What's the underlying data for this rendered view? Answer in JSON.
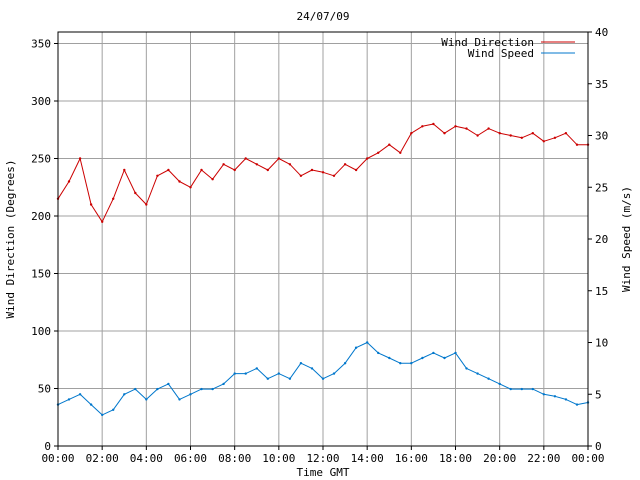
{
  "chart_data": {
    "type": "line",
    "title": "24/07/09",
    "xlabel": "Time GMT",
    "ylabel_left": "Wind Direction (Degrees)",
    "ylabel_right": "Wind Speed (m/s)",
    "xlim": [
      0,
      24
    ],
    "x_ticks": [
      "00:00",
      "02:00",
      "04:00",
      "06:00",
      "08:00",
      "10:00",
      "12:00",
      "14:00",
      "16:00",
      "18:00",
      "20:00",
      "22:00",
      "00:00"
    ],
    "y_left_lim": [
      0,
      360
    ],
    "y_left_ticks": [
      "0",
      "50",
      "100",
      "150",
      "200",
      "250",
      "300",
      "350"
    ],
    "y_right_lim": [
      0,
      40
    ],
    "y_right_ticks": [
      "0",
      "5",
      "10",
      "15",
      "20",
      "25",
      "30",
      "35",
      "40"
    ],
    "grid": true,
    "legend_position": "top-right",
    "series": [
      {
        "name": "Wind Direction",
        "color": "#cc0000",
        "axis": "left",
        "x": [
          0,
          0.5,
          1,
          1.5,
          2,
          2.5,
          3,
          3.5,
          4,
          4.5,
          5,
          5.5,
          6,
          6.5,
          7,
          7.5,
          8,
          8.5,
          9,
          9.5,
          10,
          10.5,
          11,
          11.5,
          12,
          12.5,
          13,
          13.5,
          14,
          14.5,
          15,
          15.5,
          16,
          16.5,
          17,
          17.5,
          18,
          18.5,
          19,
          19.5,
          20,
          20.5,
          21,
          21.5,
          22,
          22.5,
          23,
          23.5,
          24
        ],
        "values": [
          215,
          230,
          250,
          210,
          195,
          215,
          240,
          220,
          210,
          235,
          240,
          230,
          225,
          240,
          232,
          245,
          240,
          250,
          245,
          240,
          250,
          245,
          235,
          240,
          238,
          235,
          245,
          240,
          250,
          255,
          262,
          255,
          272,
          278,
          280,
          272,
          278,
          276,
          270,
          276,
          272,
          270,
          268,
          272,
          265,
          268,
          272,
          262,
          262
        ]
      },
      {
        "name": "Wind Speed",
        "color": "#0077cc",
        "axis": "right",
        "x": [
          0,
          0.5,
          1,
          1.5,
          2,
          2.5,
          3,
          3.5,
          4,
          4.5,
          5,
          5.5,
          6,
          6.5,
          7,
          7.5,
          8,
          8.5,
          9,
          9.5,
          10,
          10.5,
          11,
          11.5,
          12,
          12.5,
          13,
          13.5,
          14,
          14.5,
          15,
          15.5,
          16,
          16.5,
          17,
          17.5,
          18,
          18.5,
          19,
          19.5,
          20,
          20.5,
          21,
          21.5,
          22,
          22.5,
          23,
          23.5,
          24
        ],
        "values": [
          4,
          4.5,
          5,
          4,
          3,
          3.5,
          5,
          5.5,
          4.5,
          5.5,
          6,
          4.5,
          5,
          5.5,
          5.5,
          6,
          7,
          7,
          7.5,
          6.5,
          7,
          6.5,
          8,
          7.5,
          6.5,
          7,
          8,
          9.5,
          10,
          9,
          8.5,
          8,
          8,
          8.5,
          9,
          8.5,
          9,
          7.5,
          7,
          6.5,
          6,
          5.5,
          5.5,
          5.5,
          5,
          4.8,
          4.5,
          4,
          4.2
        ]
      }
    ]
  }
}
